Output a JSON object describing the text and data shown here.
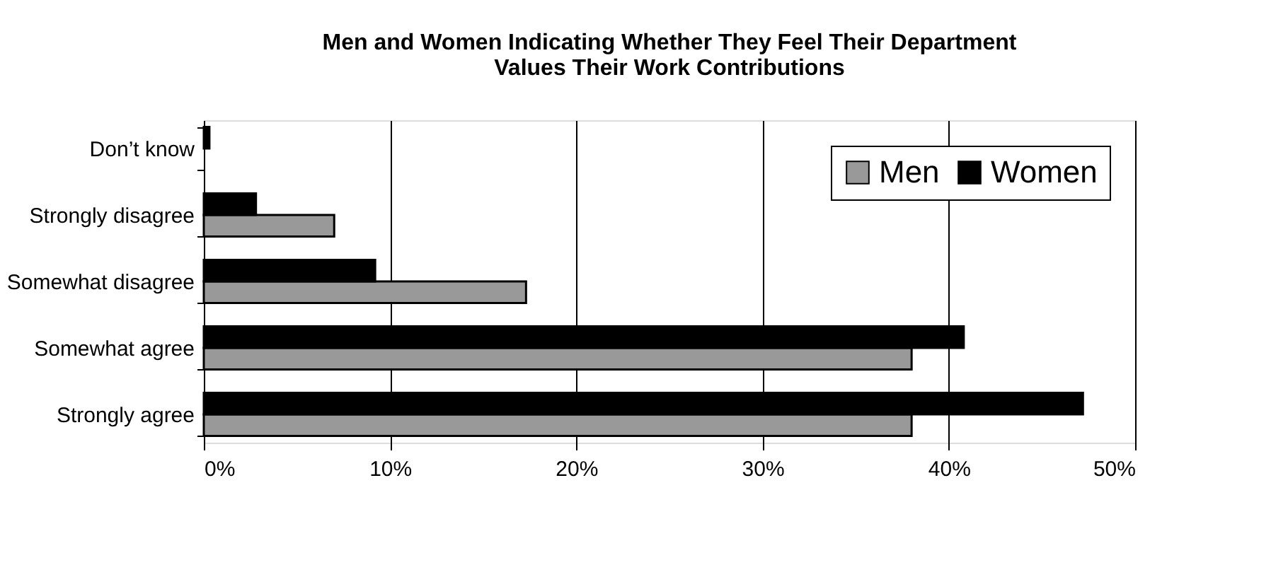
{
  "chart_data": {
    "type": "bar",
    "orientation": "horizontal",
    "title": "Men and Women Indicating Whether They Feel Their Department\nValues Their Work Contributions",
    "categories": [
      "Don’t know",
      "Strongly disagree",
      "Somewhat disagree",
      "Somewhat agree",
      "Strongly agree"
    ],
    "series": [
      {
        "name": "Men",
        "color": "#999999",
        "values": [
          null,
          7.0,
          17.3,
          38.0,
          38.0
        ]
      },
      {
        "name": "Women",
        "color": "#000000",
        "values": [
          0.3,
          2.8,
          9.2,
          40.8,
          47.2
        ]
      }
    ],
    "xlim": [
      0,
      50
    ],
    "xticks": [
      {
        "value": 0,
        "label": "0%"
      },
      {
        "value": 10,
        "label": "10%"
      },
      {
        "value": 20,
        "label": "20%"
      },
      {
        "value": 30,
        "label": "30%"
      },
      {
        "value": 40,
        "label": "40%"
      },
      {
        "value": 50,
        "label": "50%"
      }
    ],
    "grid": "x",
    "legend": "top right"
  }
}
